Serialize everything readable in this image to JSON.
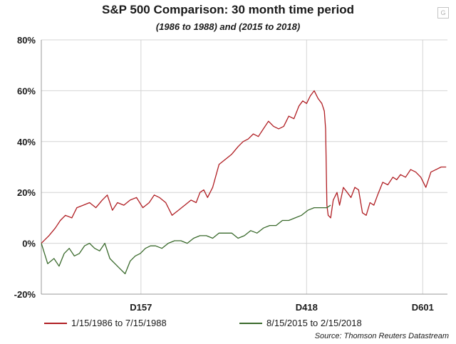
{
  "chart_data": {
    "type": "line",
    "title": "S&P 500 Comparison: 30 month time period",
    "subtitle": "(1986 to 1988) and (2015 to 2018)",
    "xlabel": "",
    "ylabel": "",
    "ylim": [
      -20,
      80
    ],
    "xlim": [
      0,
      640
    ],
    "y_ticks": [
      -20,
      0,
      20,
      40,
      60,
      80
    ],
    "y_tick_labels": [
      "-20%",
      "0%",
      "20%",
      "40%",
      "60%",
      "80%"
    ],
    "x_ticks": [
      {
        "x": 157,
        "label": "D157"
      },
      {
        "x": 418,
        "label": "D418"
      },
      {
        "x": 601,
        "label": "D601"
      }
    ],
    "grid": "horizontal-and-vertical",
    "series": [
      {
        "name": "1/15/1986 to 7/15/1988",
        "color": "#b01e23",
        "x": [
          0,
          12,
          22,
          30,
          38,
          48,
          56,
          66,
          76,
          86,
          96,
          104,
          112,
          120,
          130,
          140,
          150,
          160,
          170,
          178,
          186,
          196,
          206,
          216,
          226,
          236,
          244,
          250,
          256,
          262,
          270,
          280,
          290,
          300,
          310,
          318,
          326,
          334,
          342,
          350,
          358,
          366,
          374,
          382,
          390,
          398,
          406,
          412,
          418,
          424,
          430,
          436,
          442,
          446,
          448,
          450,
          452,
          456,
          460,
          466,
          470,
          476,
          482,
          488,
          494,
          500,
          506,
          512,
          518,
          524,
          530,
          538,
          546,
          554,
          560,
          566,
          574,
          582,
          590,
          598,
          606,
          614,
          622,
          630,
          638
        ],
        "values": [
          0,
          3,
          6,
          9,
          11,
          10,
          14,
          15,
          16,
          14,
          17,
          19,
          13,
          16,
          15,
          17,
          18,
          14,
          16,
          19,
          18,
          16,
          11,
          13,
          15,
          17,
          16,
          20,
          21,
          18,
          22,
          31,
          33,
          35,
          38,
          40,
          41,
          43,
          42,
          45,
          48,
          46,
          45,
          46,
          50,
          49,
          54,
          56,
          55,
          58,
          60,
          57,
          55,
          52,
          45,
          15,
          11,
          10,
          17,
          20,
          15,
          22,
          20,
          18,
          22,
          21,
          12,
          11,
          16,
          15,
          19,
          24,
          23,
          26,
          25,
          27,
          26,
          29,
          28,
          26,
          22,
          28,
          29,
          30,
          30
        ]
      },
      {
        "name": "8/15/2015 to 2/15/2018",
        "color": "#3a6a2c",
        "x": [
          0,
          10,
          20,
          28,
          36,
          44,
          52,
          60,
          68,
          76,
          84,
          92,
          100,
          108,
          116,
          124,
          132,
          140,
          148,
          156,
          164,
          172,
          180,
          190,
          200,
          210,
          220,
          230,
          240,
          250,
          260,
          270,
          280,
          290,
          300,
          310,
          320,
          330,
          340,
          350,
          360,
          370,
          380,
          390,
          400,
          410,
          420,
          430,
          440,
          450,
          456
        ],
        "values": [
          0,
          -8,
          -6,
          -9,
          -4,
          -2,
          -5,
          -4,
          -1,
          0,
          -2,
          -3,
          0,
          -6,
          -8,
          -10,
          -12,
          -7,
          -5,
          -4,
          -2,
          -1,
          -1,
          -2,
          0,
          1,
          1,
          0,
          2,
          3,
          3,
          2,
          4,
          4,
          4,
          2,
          3,
          5,
          4,
          6,
          7,
          7,
          9,
          9,
          10,
          11,
          13,
          14,
          14,
          14,
          15
        ]
      }
    ],
    "legend": "bottom",
    "annotations": [
      "Source: Thomson Reuters Datastream"
    ]
  },
  "ui": {
    "badge_label": "G"
  }
}
